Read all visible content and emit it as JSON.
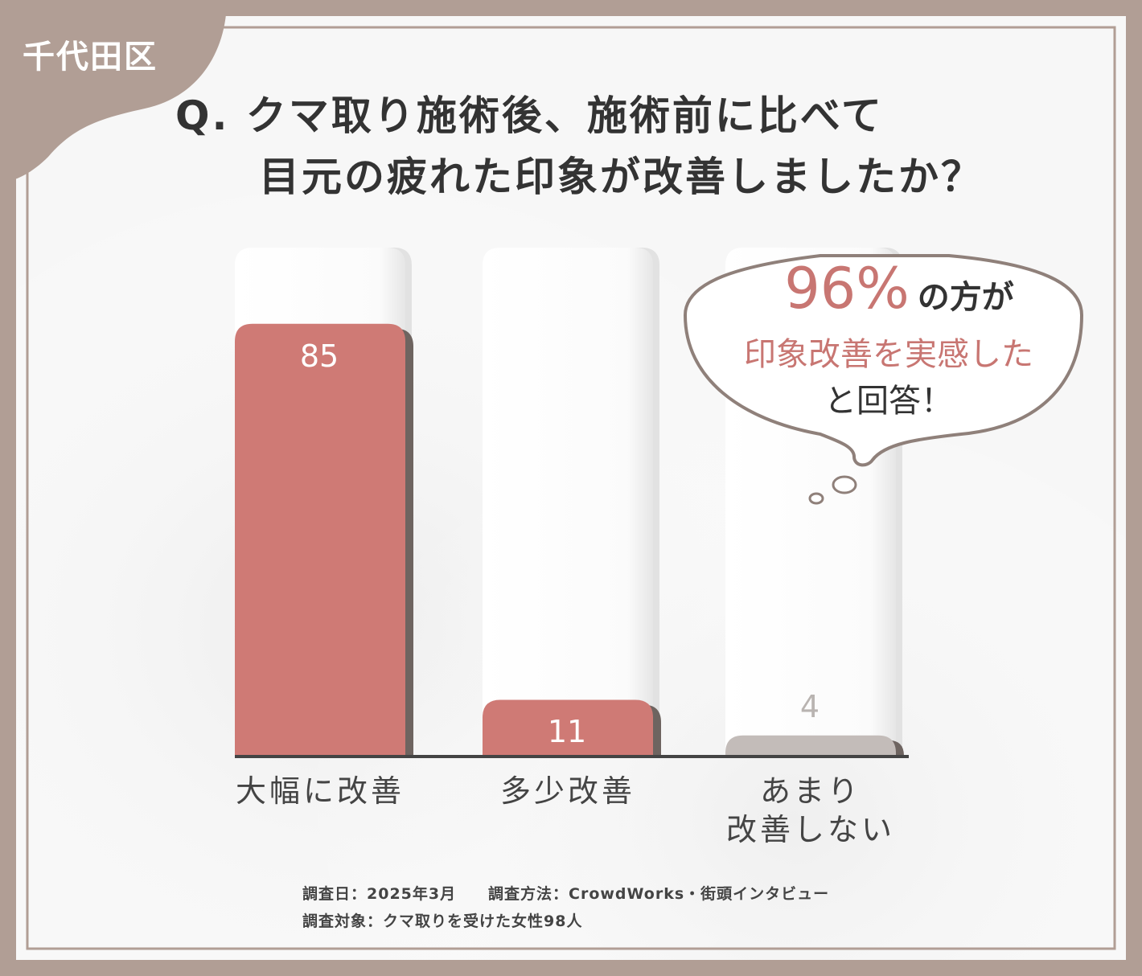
{
  "badge": {
    "text": "千代田区"
  },
  "question": {
    "line1": "Q. クマ取り施術後、施術前に比べて",
    "line2": "目元の疲れた印象が改善しましたか？"
  },
  "chart_data": {
    "type": "bar",
    "categories": [
      "大幅に改善",
      "多少改善",
      "あまり改善しない"
    ],
    "category_lines": [
      [
        "大幅に改善"
      ],
      [
        "多少改善"
      ],
      [
        "あまり",
        "改善しない"
      ]
    ],
    "values": [
      85,
      11,
      4
    ],
    "value_labels": [
      "85",
      "11",
      "4"
    ],
    "ylim": [
      0,
      100
    ],
    "colors": [
      "#cf7a75",
      "#cf7a75",
      "#c3bcb9"
    ],
    "title": "",
    "xlabel": "",
    "ylabel": ""
  },
  "callout": {
    "percent": "96%",
    "percent_suffix": "の方が",
    "line2": "印象改善を実感した",
    "line3": "と回答！"
  },
  "footnote": {
    "date": "調査日：2025年3月",
    "method": "調査方法：CrowdWorks・街頭インタビュー",
    "target": "調査対象：クマ取りを受けた女性98人"
  },
  "colors": {
    "frame": "#b19e95",
    "bar_highlight": "#cf7a75",
    "bar_muted": "#c3bcb9",
    "accent_text": "#c87672",
    "title_text": "#333333"
  }
}
